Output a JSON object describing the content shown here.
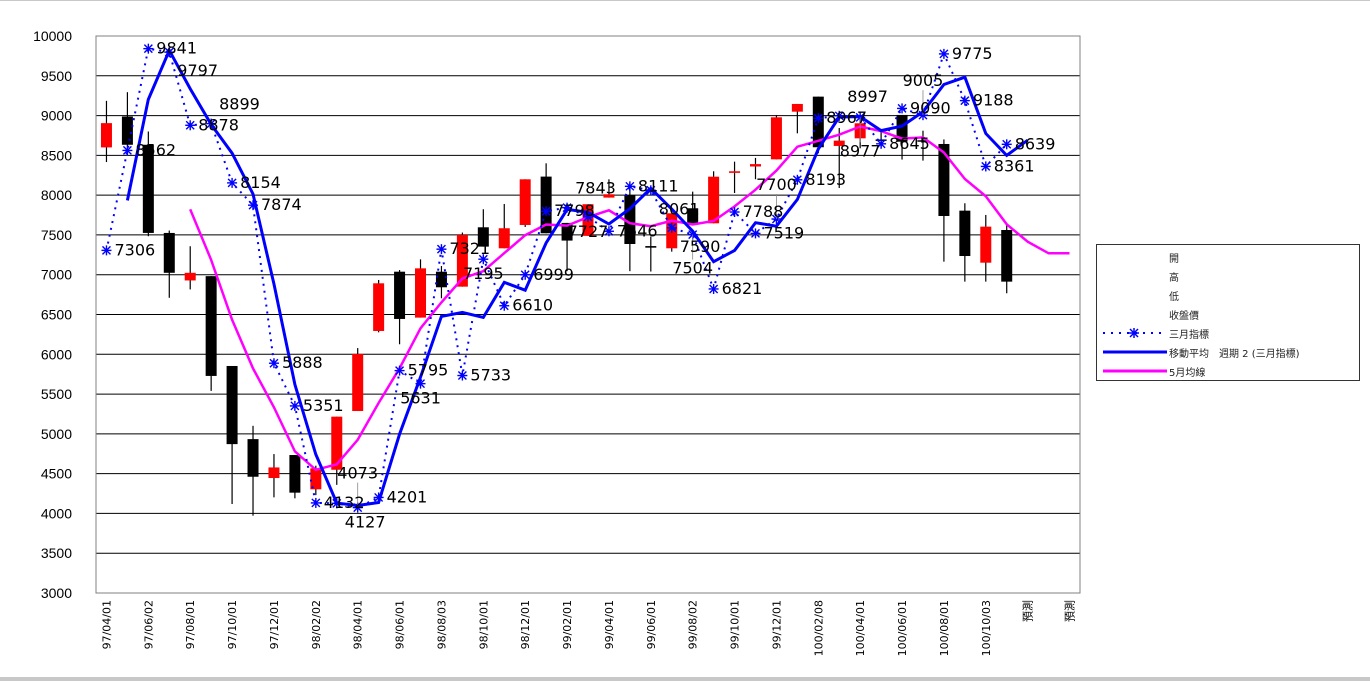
{
  "chart_data": {
    "type": "candlestick",
    "title": "",
    "xlabel": "",
    "ylabel": "",
    "ylim": [
      3000,
      10000
    ],
    "y_ticks": [
      "3000",
      "3500",
      "4000",
      "4500",
      "5000",
      "5500",
      "6000",
      "6500",
      "7000",
      "7500",
      "8000",
      "8500",
      "9000",
      "9500",
      "10000"
    ],
    "grid": true,
    "legend_position": "right",
    "category_count": 47,
    "x_tick_labels": [
      "97/04/01",
      "97/06/02",
      "97/08/01",
      "97/10/01",
      "97/12/01",
      "98/02/02",
      "98/04/01",
      "98/06/01",
      "98/08/03",
      "98/10/01",
      "98/12/01",
      "99/02/01",
      "99/04/01",
      "99/06/01",
      "99/08/02",
      "99/10/01",
      "99/12/01",
      "100/02/08",
      "100/04/01",
      "100/06/01",
      "100/08/01",
      "100/10/03",
      "預測",
      "預測"
    ],
    "candles": {
      "open": [
        8600,
        8988,
        8633,
        7525,
        6928,
        6982,
        5853,
        4934,
        4445,
        4734,
        4303,
        4549,
        5287,
        6293,
        7038,
        6461,
        7038,
        6850,
        7596,
        7332,
        7625,
        8233,
        7651,
        7488,
        7969,
        8002,
        7360,
        7332,
        7835,
        7646,
        8280,
        8360,
        8450,
        9049,
        9238,
        8618,
        8714,
        8700,
        9008,
        8690,
        8643,
        7805,
        7151,
        7562
      ],
      "high": [
        9185,
        9294,
        8800,
        7555,
        7358,
        6982,
        5853,
        5101,
        4746,
        4734,
        4600,
        5216,
        6078,
        6934,
        7059,
        7193,
        7109,
        7530,
        7823,
        7889,
        8199,
        8400,
        7651,
        7886,
        8199,
        8148,
        7480,
        7772,
        8044,
        8300,
        8421,
        8468,
        9007,
        9146,
        9238,
        8844,
        8980,
        8800,
        9008,
        8810,
        8700,
        7898,
        7751,
        7650
      ],
      "low": [
        8416,
        8612,
        7484,
        6710,
        6815,
        5540,
        4119,
        3972,
        4202,
        4190,
        4230,
        4359,
        5287,
        6276,
        6126,
        6461,
        6704,
        6850,
        7353,
        7332,
        7600,
        7521,
        7045,
        7488,
        7969,
        7045,
        7040,
        7290,
        7646,
        7646,
        8027,
        8200,
        8450,
        8777,
        8526,
        8090,
        8589,
        8600,
        8447,
        8434,
        7164,
        6913,
        6913,
        6767
      ],
      "close": [
        8905,
        8633,
        7525,
        7024,
        7024,
        5728,
        4871,
        4461,
        4578,
        4261,
        4567,
        5216,
        6004,
        6892,
        6444,
        7080,
        6842,
        7500,
        7353,
        7584,
        8199,
        7521,
        7429,
        7886,
        8011,
        7386,
        7340,
        7772,
        7646,
        8232,
        8300,
        8390,
        8978,
        9146,
        8602,
        8685,
        8903,
        8690,
        8672,
        8678,
        7738,
        7235,
        7604,
        6913
      ],
      "up_color": "#ff0000",
      "down_color": "#000000"
    },
    "series": [
      {
        "name": "三月指標",
        "color": "#0000ff",
        "style": "dotted-asterisk",
        "values": [
          7306,
          8562,
          9841,
          9797,
          8878,
          8899,
          8154,
          7874,
          5888,
          5351,
          4132,
          4127,
          4073,
          4201,
          5795,
          5631,
          7321,
          5733,
          7195,
          6610,
          6999,
          7798,
          7843,
          7727,
          7546,
          8111,
          8061,
          7590,
          7504,
          6821,
          7788,
          7519,
          7700,
          8193,
          8967,
          8997,
          8977,
          8645,
          9090,
          9005,
          9775,
          9188,
          8361,
          8639,
          null,
          null,
          null
        ],
        "data_labels": true
      },
      {
        "name": "移動平均 週期 2 (三月指標)",
        "color": "#0000ff",
        "style": "solid",
        "values": [
          null,
          7934,
          9202,
          9819,
          9338,
          8889,
          8527,
          8014,
          6881,
          5620,
          4742,
          4130,
          4100,
          4137,
          4998,
          5713,
          6476,
          6527,
          6464,
          6903,
          6805,
          7399,
          7821,
          7785,
          7637,
          7829,
          8086,
          7826,
          7547,
          7163,
          7305,
          7654,
          7610,
          7947,
          8580,
          8982,
          8987,
          8811,
          8868,
          9048,
          9390,
          9482,
          8775,
          8500,
          8690,
          null,
          null
        ]
      },
      {
        "name": "5月均線",
        "color": "#ff00ff",
        "style": "solid",
        "values": [
          null,
          null,
          null,
          null,
          7822,
          7187,
          6434,
          5822,
          5332,
          4780,
          4548,
          4617,
          4925,
          5388,
          5825,
          6327,
          6652,
          6952,
          7044,
          7272,
          7496,
          7631,
          7617,
          7724,
          7809,
          7647,
          7610,
          7679,
          7631,
          7675,
          7858,
          8068,
          8309,
          8609,
          8683,
          8760,
          8863,
          8805,
          8710,
          8726,
          8536,
          8203,
          7985,
          7634,
          7415,
          7269,
          7269
        ]
      }
    ],
    "legend": [
      "開",
      "高",
      "低",
      "收盤價",
      "三月指標",
      "移動平均　週期 2 (三月指標)",
      "5月均線"
    ]
  }
}
